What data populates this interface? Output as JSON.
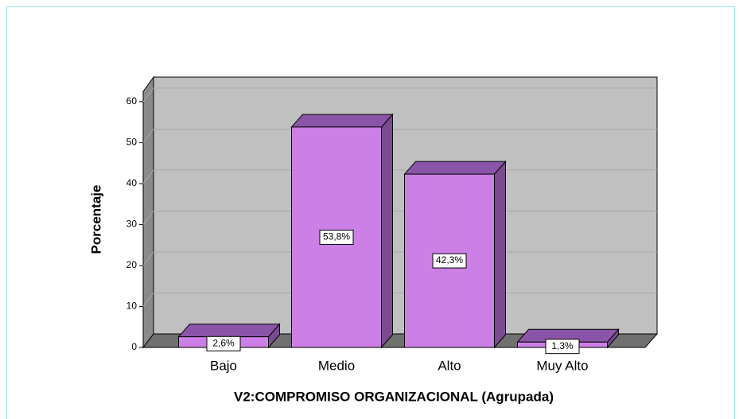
{
  "chart_data": {
    "type": "bar3d",
    "x_label": "V2:COMPROMISO ORGANIZACIONAL (Agrupada)",
    "y_label": "Porcentaje",
    "categories": [
      "Bajo",
      "Medio",
      "Alto",
      "Muy Alto"
    ],
    "values": [
      2.6,
      53.8,
      42.3,
      1.3
    ],
    "value_labels": [
      "2,6%",
      "53,8%",
      "42,3%",
      "1,3%"
    ],
    "color": "#cc80e6",
    "ylim": [
      0,
      62.5
    ],
    "yticks": [
      0,
      10,
      20,
      30,
      40,
      50,
      60
    ],
    "grid": true
  }
}
